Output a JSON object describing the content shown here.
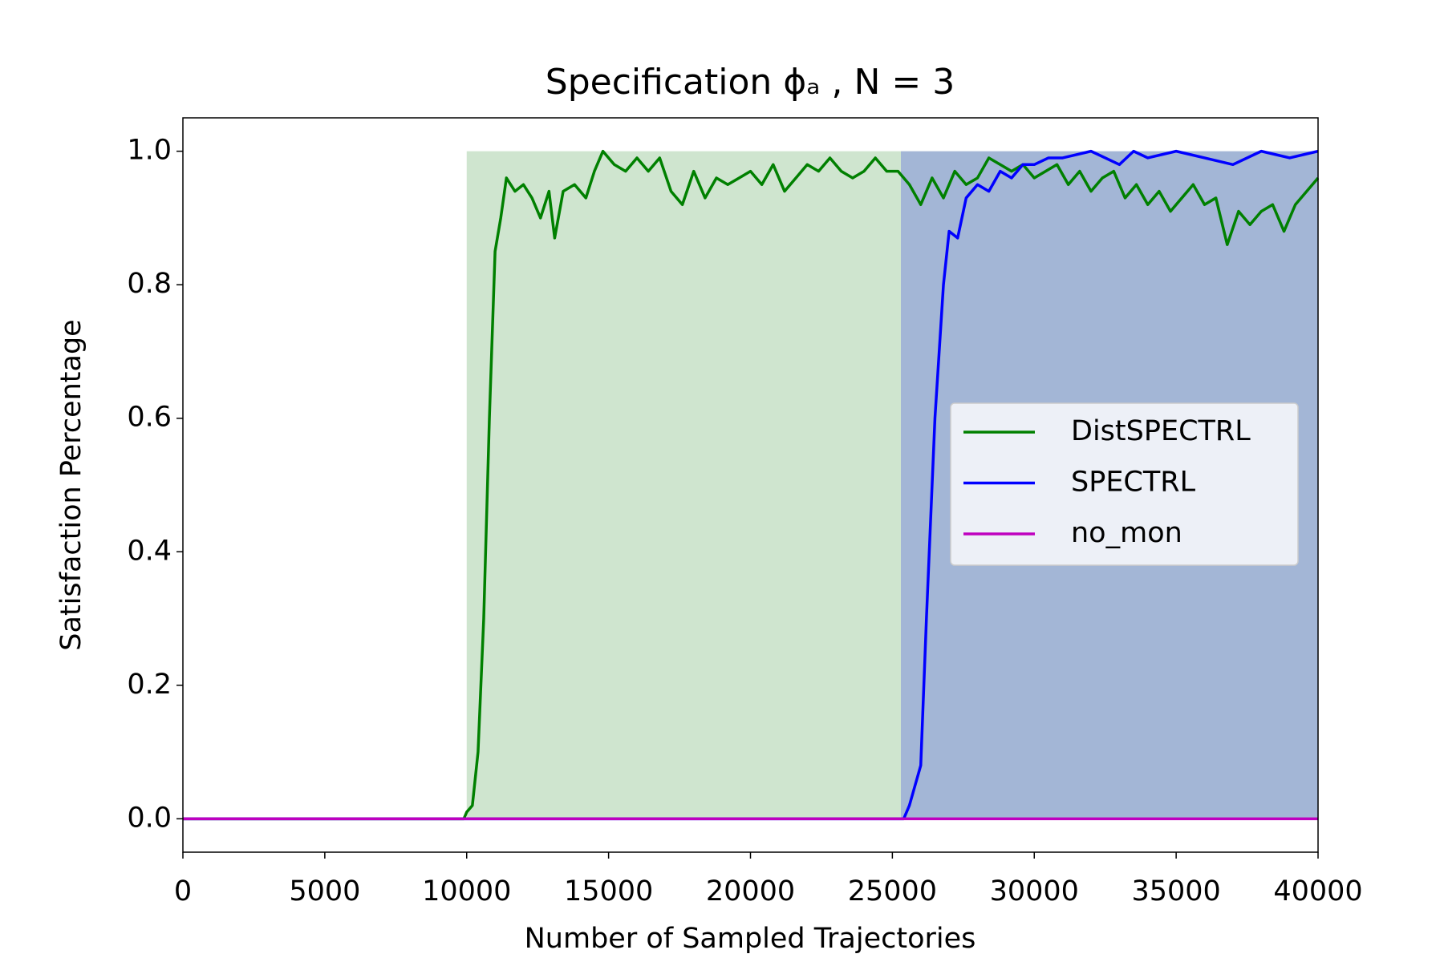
{
  "chart_data": {
    "type": "line",
    "title": "Specification ϕₐ , N = 3",
    "x_label": "Number of Sampled Trajectories",
    "y_label": "Satisfaction Percentage",
    "xlim": [
      0,
      40000
    ],
    "ylim": [
      -0.05,
      1.05
    ],
    "xticks": [
      0,
      5000,
      10000,
      15000,
      20000,
      25000,
      30000,
      35000,
      40000
    ],
    "yticks": [
      {
        "value": 0,
        "label": "0.0"
      },
      {
        "value": 0.2,
        "label": "0.2"
      },
      {
        "value": 0.4,
        "label": "0.4"
      },
      {
        "value": 0.6,
        "label": "0.6"
      },
      {
        "value": 0.8,
        "label": "0.8"
      },
      {
        "value": 1,
        "label": "1.0"
      }
    ],
    "legend": "center right",
    "series": [
      {
        "name": "DistSPECTRL",
        "color": "#008000",
        "band_color": "#cfe5cf",
        "band": [
          10000,
          25300
        ],
        "x": [
          0,
          9900,
          10000,
          10200,
          10400,
          10600,
          10800,
          11000,
          11200,
          11400,
          11700,
          12000,
          12300,
          12600,
          12900,
          13100,
          13400,
          13800,
          14200,
          14500,
          14800,
          15200,
          15600,
          16000,
          16400,
          16800,
          17200,
          17600,
          18000,
          18400,
          18800,
          19200,
          19600,
          20000,
          20400,
          20800,
          21200,
          21600,
          22000,
          22400,
          22800,
          23200,
          23600,
          24000,
          24400,
          24800,
          25200,
          25600,
          26000,
          26400,
          26800,
          27200,
          27600,
          28000,
          28400,
          28800,
          29200,
          29600,
          30000,
          30400,
          30800,
          31200,
          31600,
          32000,
          32400,
          32800,
          33200,
          33600,
          34000,
          34400,
          34800,
          35200,
          35600,
          36000,
          36400,
          36800,
          37200,
          37600,
          38000,
          38400,
          38800,
          39200,
          39600,
          40000
        ],
        "values": [
          0,
          0,
          0.01,
          0.02,
          0.1,
          0.3,
          0.6,
          0.85,
          0.9,
          0.96,
          0.94,
          0.95,
          0.93,
          0.9,
          0.94,
          0.87,
          0.94,
          0.95,
          0.93,
          0.97,
          1.0,
          0.98,
          0.97,
          0.99,
          0.97,
          0.99,
          0.94,
          0.92,
          0.97,
          0.93,
          0.96,
          0.95,
          0.96,
          0.97,
          0.95,
          0.98,
          0.94,
          0.96,
          0.98,
          0.97,
          0.99,
          0.97,
          0.96,
          0.97,
          0.99,
          0.97,
          0.97,
          0.95,
          0.92,
          0.96,
          0.93,
          0.97,
          0.95,
          0.96,
          0.99,
          0.98,
          0.97,
          0.98,
          0.96,
          0.97,
          0.98,
          0.95,
          0.97,
          0.94,
          0.96,
          0.97,
          0.93,
          0.95,
          0.92,
          0.94,
          0.91,
          0.93,
          0.95,
          0.92,
          0.93,
          0.86,
          0.91,
          0.89,
          0.91,
          0.92,
          0.88,
          0.92,
          0.94,
          0.96
        ]
      },
      {
        "name": "SPECTRL",
        "color": "#0000ff",
        "band_color": "#a3b6d6",
        "band": [
          25300,
          40000
        ],
        "x": [
          0,
          25200,
          25400,
          25600,
          26000,
          26200,
          26500,
          26800,
          27000,
          27300,
          27600,
          28000,
          28400,
          28800,
          29200,
          29600,
          30000,
          30500,
          31000,
          31500,
          32000,
          32500,
          33000,
          33500,
          34000,
          35000,
          36000,
          37000,
          38000,
          39000,
          40000
        ],
        "values": [
          0,
          0,
          0,
          0.02,
          0.08,
          0.3,
          0.6,
          0.8,
          0.88,
          0.87,
          0.93,
          0.95,
          0.94,
          0.97,
          0.96,
          0.98,
          0.98,
          0.99,
          0.99,
          0.995,
          1.0,
          0.99,
          0.98,
          1.0,
          0.99,
          1.0,
          0.99,
          0.98,
          1.0,
          0.99,
          1.0
        ]
      },
      {
        "name": "no_mon",
        "color": "#bf00bf",
        "x": [
          0,
          40000
        ],
        "values": [
          0,
          0
        ]
      }
    ]
  }
}
